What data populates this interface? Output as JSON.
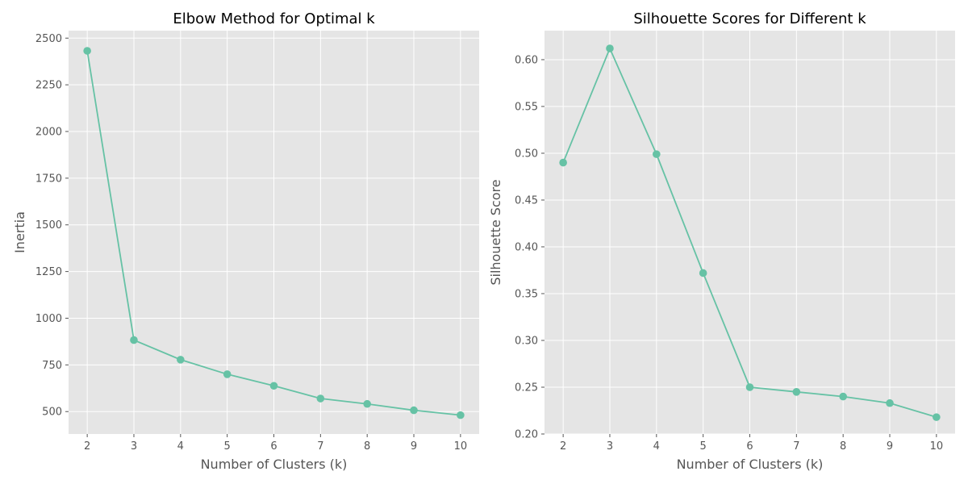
{
  "chart_data": [
    {
      "type": "line",
      "title": "Elbow Method for Optimal k",
      "xlabel": "Number of Clusters (k)",
      "ylabel": "Inertia",
      "x": [
        2,
        3,
        4,
        5,
        6,
        7,
        8,
        9,
        10
      ],
      "y": [
        2432,
        883,
        778,
        700,
        638,
        570,
        541,
        507,
        481
      ],
      "xticks": [
        "2",
        "3",
        "4",
        "5",
        "6",
        "7",
        "8",
        "9",
        "10"
      ],
      "yticks": [
        "500",
        "750",
        "1000",
        "1250",
        "1500",
        "1750",
        "2000",
        "2250",
        "2500"
      ],
      "ytick_values": [
        500,
        750,
        1000,
        1250,
        1500,
        1750,
        2000,
        2250,
        2500
      ],
      "xlim": [
        1.6,
        10.4
      ],
      "ylim": [
        380,
        2540
      ],
      "grid": true,
      "marker": "circle",
      "line_color": "#66c2a5",
      "background": "#e5e5e5"
    },
    {
      "type": "line",
      "title": "Silhouette Scores for Different k",
      "xlabel": "Number of Clusters (k)",
      "ylabel": "Silhouette Score",
      "x": [
        2,
        3,
        4,
        5,
        6,
        7,
        8,
        9,
        10
      ],
      "y": [
        0.49,
        0.612,
        0.499,
        0.372,
        0.25,
        0.245,
        0.24,
        0.233,
        0.218
      ],
      "xticks": [
        "2",
        "3",
        "4",
        "5",
        "6",
        "7",
        "8",
        "9",
        "10"
      ],
      "yticks": [
        "0.20",
        "0.25",
        "0.30",
        "0.35",
        "0.40",
        "0.45",
        "0.50",
        "0.55",
        "0.60"
      ],
      "ytick_values": [
        0.2,
        0.25,
        0.3,
        0.35,
        0.4,
        0.45,
        0.5,
        0.55,
        0.6
      ],
      "xlim": [
        1.6,
        10.4
      ],
      "ylim": [
        0.2,
        0.631
      ],
      "grid": true,
      "marker": "circle",
      "line_color": "#66c2a5",
      "background": "#e5e5e5"
    }
  ]
}
